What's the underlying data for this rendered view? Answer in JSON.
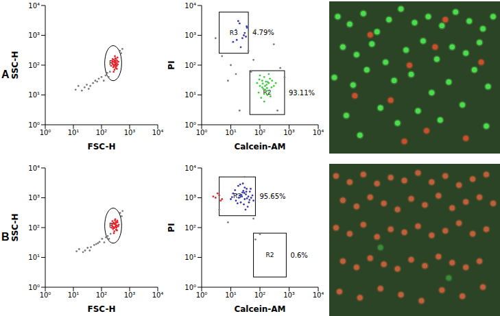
{
  "chart_data": [
    {
      "panel": "A",
      "type": "scatter",
      "log": true,
      "x_label": "FSC-H",
      "y_label": "SSC-H",
      "xlim": [
        1,
        10000
      ],
      "ylim": [
        1,
        10000
      ],
      "xticks": [
        {
          "value": 1,
          "label": "10⁰"
        },
        {
          "value": 10,
          "label": "10¹"
        },
        {
          "value": 100,
          "label": "10²"
        },
        {
          "value": 1000,
          "label": "10³"
        },
        {
          "value": 10000,
          "label": "10⁴"
        }
      ],
      "yticks": [
        {
          "value": 1,
          "label": "10⁰"
        },
        {
          "value": 10,
          "label": "10¹"
        },
        {
          "value": 100,
          "label": "10²"
        },
        {
          "value": 1000,
          "label": "10³"
        },
        {
          "value": 10000,
          "label": "10⁴"
        }
      ],
      "series": [
        {
          "name": "R1",
          "color": "#e8242a",
          "x": [
            250,
            300,
            350,
            280,
            320,
            270,
            360,
            230,
            310,
            290,
            340,
            260,
            380,
            300,
            240,
            330,
            270,
            350,
            400,
            220,
            310,
            290,
            330,
            260,
            370,
            280,
            320,
            300,
            250,
            350
          ],
          "y": [
            110,
            130,
            95,
            150,
            80,
            100,
            140,
            120,
            170,
            70,
            115,
            85,
            105,
            200,
            140,
            160,
            60,
            75,
            130,
            95,
            110,
            125,
            90,
            130,
            180,
            90,
            140,
            100,
            160,
            120
          ]
        },
        {
          "color": "#7a7a7a",
          "x": [
            12,
            15,
            20,
            25,
            30,
            40,
            50,
            60,
            70,
            80,
            100,
            120,
            140,
            160,
            180,
            200,
            450,
            500,
            550,
            35
          ],
          "y": [
            15,
            20,
            14,
            18,
            22,
            20,
            25,
            30,
            28,
            35,
            40,
            30,
            45,
            55,
            40,
            60,
            300,
            250,
            350,
            16
          ]
        }
      ],
      "gates": [
        {
          "name": "R1",
          "shape": "ellipse",
          "x": [
            130,
            520
          ],
          "y": [
            30,
            450
          ]
        }
      ]
    },
    {
      "panel": "A",
      "type": "scatter",
      "log": true,
      "x_label": "Calcein-AM",
      "y_label": "PI",
      "xlim": [
        1,
        10000
      ],
      "ylim": [
        1,
        10000
      ],
      "xticks": [
        {
          "value": 1,
          "label": "10⁰"
        },
        {
          "value": 10,
          "label": "10¹"
        },
        {
          "value": 100,
          "label": "10²"
        },
        {
          "value": 1000,
          "label": "10³"
        },
        {
          "value": 10000,
          "label": "10⁴"
        }
      ],
      "yticks": [
        {
          "value": 1,
          "label": "10⁰"
        },
        {
          "value": 10,
          "label": "10¹"
        },
        {
          "value": 100,
          "label": "10²"
        },
        {
          "value": 1000,
          "label": "10³"
        },
        {
          "value": 10000,
          "label": "10⁴"
        }
      ],
      "series": [
        {
          "name": "R2",
          "color": "#3ccc3c",
          "x": [
            100,
            150,
            200,
            120,
            180,
            90,
            250,
            140,
            170,
            110,
            220,
            130,
            160,
            300,
            80,
            190,
            140,
            210,
            100,
            260,
            150,
            120,
            175,
            230,
            95,
            350,
            140,
            200,
            125,
            185
          ],
          "y": [
            20,
            15,
            25,
            30,
            10,
            12,
            18,
            40,
            22,
            8,
            35,
            16,
            28,
            20,
            25,
            14,
            6,
            12,
            45,
            30,
            20,
            18,
            17,
            9,
            33,
            25,
            11,
            50,
            24,
            27
          ]
        },
        {
          "name": "R3",
          "color": "#3a3aa8",
          "x": [
            15,
            25,
            20,
            30,
            12,
            33,
            18,
            22,
            35,
            28,
            16,
            36
          ],
          "y": [
            1500,
            800,
            2500,
            1200,
            600,
            900,
            3000,
            400,
            2000,
            1000,
            700,
            1800
          ]
        },
        {
          "color": "#7a7a7a",
          "x": [
            8,
            10,
            5,
            40,
            60,
            300,
            500,
            700,
            15,
            50,
            20,
            400,
            70,
            3
          ],
          "y": [
            30,
            100,
            200,
            300,
            150,
            500,
            80,
            40,
            50,
            60,
            3,
            3,
            1500,
            800
          ]
        }
      ],
      "gates": [
        {
          "name": "R3",
          "shape": "rectangle",
          "x": [
            4,
            40
          ],
          "y": [
            250,
            6000
          ],
          "percent": "4.79%"
        },
        {
          "name": "R2",
          "shape": "rectangle",
          "x": [
            45,
            700
          ],
          "y": [
            2.2,
            65
          ],
          "percent": "93.11%"
        }
      ]
    },
    {
      "panel": "A",
      "type": "micrograph",
      "tick_labels": false,
      "xlim": [
        0,
        100
      ],
      "ylim": [
        0,
        100
      ],
      "series": [
        {
          "color": "#4ddc4d",
          "x": [
            5,
            12,
            20,
            28,
            35,
            42,
            50,
            58,
            66,
            74,
            82,
            90,
            96,
            8,
            16,
            25,
            33,
            45,
            55,
            63,
            72,
            80,
            88,
            3,
            14,
            22,
            38,
            48,
            60,
            70,
            85,
            93,
            10,
            30,
            40,
            52,
            65,
            78,
            92,
            18
          ],
          "y": [
            90,
            85,
            92,
            80,
            88,
            95,
            86,
            90,
            84,
            93,
            87,
            82,
            90,
            70,
            65,
            72,
            60,
            68,
            74,
            62,
            70,
            66,
            73,
            50,
            45,
            55,
            48,
            52,
            40,
            47,
            55,
            44,
            25,
            30,
            20,
            28,
            22,
            32,
            18,
            12
          ]
        },
        {
          "color": "#c8502c",
          "x": [
            24,
            47,
            68,
            89,
            36,
            57,
            15,
            80,
            62,
            44
          ],
          "y": [
            78,
            58,
            88,
            60,
            35,
            15,
            38,
            10,
            70,
            8
          ]
        }
      ]
    },
    {
      "panel": "B",
      "type": "scatter",
      "log": true,
      "x_label": "FSC-H",
      "y_label": "SSC-H",
      "xlim": [
        1,
        10000
      ],
      "ylim": [
        1,
        10000
      ],
      "xticks": [
        {
          "value": 1,
          "label": "10⁰"
        },
        {
          "value": 10,
          "label": "10¹"
        },
        {
          "value": 100,
          "label": "10²"
        },
        {
          "value": 1000,
          "label": "10³"
        },
        {
          "value": 10000,
          "label": "10⁴"
        }
      ],
      "yticks": [
        {
          "value": 1,
          "label": "10⁰"
        },
        {
          "value": 10,
          "label": "10¹"
        },
        {
          "value": 100,
          "label": "10²"
        },
        {
          "value": 1000,
          "label": "10³"
        },
        {
          "value": 10000,
          "label": "10⁴"
        }
      ],
      "series": [
        {
          "name": "R1",
          "color": "#e8242a",
          "x": [
            260,
            310,
            340,
            270,
            330,
            280,
            370,
            240,
            300,
            285,
            345,
            255,
            390,
            310,
            235,
            325,
            275,
            355,
            410,
            225,
            315,
            295,
            335,
            265,
            365,
            275,
            325,
            305,
            245,
            345
          ],
          "y": [
            105,
            135,
            100,
            145,
            85,
            95,
            150,
            115,
            175,
            75,
            120,
            90,
            110,
            190,
            135,
            155,
            65,
            80,
            125,
            100,
            105,
            130,
            85,
            135,
            170,
            95,
            145,
            105,
            165,
            115
          ]
        },
        {
          "color": "#7a7a7a",
          "x": [
            13,
            16,
            22,
            26,
            32,
            42,
            55,
            65,
            75,
            85,
            105,
            125,
            145,
            165,
            185,
            210,
            460,
            520,
            560,
            38
          ],
          "y": [
            16,
            19,
            15,
            17,
            21,
            22,
            26,
            28,
            30,
            33,
            42,
            32,
            47,
            52,
            42,
            62,
            310,
            240,
            360,
            17
          ]
        }
      ],
      "gates": [
        {
          "name": "R1",
          "shape": "ellipse",
          "x": [
            130,
            520
          ],
          "y": [
            30,
            450
          ]
        }
      ]
    },
    {
      "panel": "B",
      "type": "scatter",
      "log": true,
      "x_label": "Calcein-AM",
      "y_label": "PI",
      "xlim": [
        1,
        10000
      ],
      "ylim": [
        1,
        10000
      ],
      "xticks": [
        {
          "value": 1,
          "label": "10⁰"
        },
        {
          "value": 10,
          "label": "10¹"
        },
        {
          "value": 100,
          "label": "10²"
        },
        {
          "value": 1000,
          "label": "10³"
        },
        {
          "value": 10000,
          "label": "10⁴"
        }
      ],
      "yticks": [
        {
          "value": 1,
          "label": "10⁰"
        },
        {
          "value": 10,
          "label": "10¹"
        },
        {
          "value": 100,
          "label": "10²"
        },
        {
          "value": 1000,
          "label": "10³"
        },
        {
          "value": 10000,
          "label": "10⁴"
        }
      ],
      "series": [
        {
          "name": "R3",
          "color": "#3a3aa8",
          "x": [
            20,
            30,
            25,
            15,
            40,
            12,
            35,
            22,
            50,
            18,
            28,
            45,
            10,
            33,
            26,
            60,
            14,
            38,
            24,
            30,
            19,
            42,
            27,
            16,
            55,
            32,
            21,
            36,
            11,
            48,
            23,
            29,
            17,
            44,
            34
          ],
          "y": [
            1200,
            900,
            1500,
            800,
            1100,
            1400,
            2000,
            700,
            1000,
            2500,
            600,
            1600,
            900,
            1300,
            3000,
            800,
            1800,
            500,
            1100,
            2200,
            1000,
            700,
            1700,
            1300,
            1200,
            400,
            2800,
            950,
            1050,
            2000,
            1250,
            1450,
            650,
            850,
            1600
          ]
        },
        {
          "color": "#e8242a",
          "x": [
            3,
            4,
            5,
            3.5,
            2.5,
            4.5
          ],
          "y": [
            1000,
            1200,
            900,
            1400,
            1100,
            800
          ]
        },
        {
          "color": "#7a7a7a",
          "x": [
            8,
            60,
            100,
            70,
            30,
            4
          ],
          "y": [
            150,
            200,
            60,
            40,
            5000,
            400
          ]
        }
      ],
      "gates": [
        {
          "name": "R3",
          "shape": "rectangle",
          "x": [
            4,
            70
          ],
          "y": [
            250,
            5000
          ],
          "percent": "95.65%"
        },
        {
          "name": "R2",
          "shape": "rectangle",
          "x": [
            60,
            800
          ],
          "y": [
            2.2,
            65
          ],
          "percent": "0.6%"
        }
      ]
    },
    {
      "panel": "B",
      "type": "micrograph",
      "tick_labels": false,
      "xlim": [
        0,
        100
      ],
      "ylim": [
        0,
        100
      ],
      "series": [
        {
          "color": "#c0603a",
          "x": [
            4,
            12,
            20,
            28,
            36,
            44,
            52,
            60,
            68,
            76,
            84,
            92,
            8,
            16,
            24,
            32,
            40,
            48,
            56,
            64,
            72,
            80,
            88,
            96,
            4,
            12,
            20,
            28,
            36,
            44,
            52,
            60,
            68,
            76,
            84,
            92,
            8,
            16,
            24,
            32,
            40,
            48,
            56,
            64,
            72,
            80,
            88,
            6,
            18,
            30,
            42,
            54,
            66,
            78,
            90
          ],
          "y": [
            92,
            88,
            93,
            87,
            91,
            89,
            94,
            88,
            92,
            86,
            90,
            93,
            76,
            72,
            78,
            74,
            70,
            77,
            73,
            79,
            71,
            75,
            78,
            74,
            58,
            54,
            60,
            52,
            57,
            55,
            59,
            53,
            56,
            61,
            54,
            57,
            36,
            32,
            38,
            34,
            31,
            37,
            33,
            39,
            35,
            32,
            36,
            16,
            12,
            18,
            14,
            10,
            17,
            13,
            19
          ]
        },
        {
          "color": "#3a8a3a",
          "x": [
            30,
            70
          ],
          "y": [
            45,
            25
          ]
        }
      ]
    }
  ]
}
